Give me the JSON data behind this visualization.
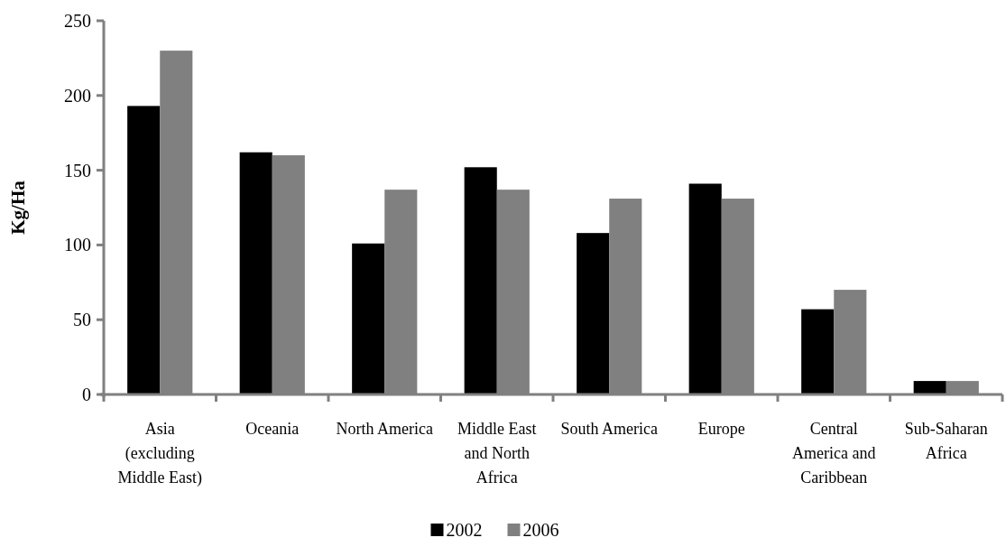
{
  "chart_data": {
    "type": "bar",
    "ylabel": "Kg/Ha",
    "categories": [
      "Asia (excluding Middle East)",
      "Oceania",
      "North America",
      "Middle East and North Africa",
      "South America",
      "Europe",
      "Central America and Caribbean",
      "Sub-Saharan Africa"
    ],
    "series": [
      {
        "name": "2002",
        "color": "#000000",
        "values": [
          193,
          162,
          101,
          152,
          108,
          141,
          57,
          9
        ]
      },
      {
        "name": "2006",
        "color": "#808080",
        "values": [
          230,
          160,
          137,
          137,
          131,
          131,
          70,
          9
        ]
      }
    ],
    "ylim": [
      0,
      250
    ],
    "yticks": [
      0,
      50,
      100,
      150,
      200,
      250
    ],
    "grid": false,
    "legend": "bottom"
  }
}
